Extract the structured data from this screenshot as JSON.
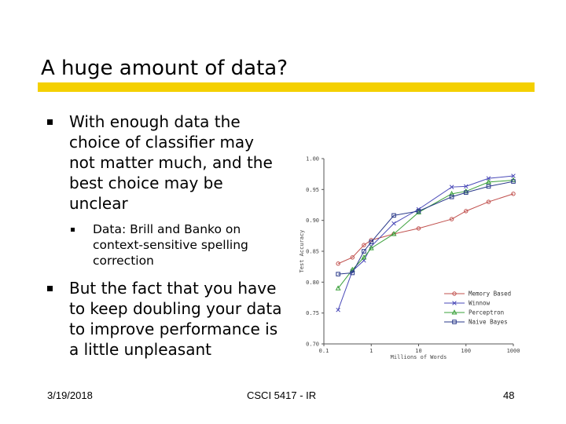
{
  "slide": {
    "title": "A huge amount of data?",
    "bullets": [
      "With enough data the choice of classifier may not matter much, and the best choice may be unclear",
      "Data: Brill and Banko on context-sensitive spelling correction",
      "But the fact that you have to keep doubling your data to improve performance is a little unpleasant"
    ],
    "footer": {
      "date": "3/19/2018",
      "course": "CSCI 5417 - IR",
      "page": "48"
    },
    "accent_color": "#f4d000"
  },
  "chart_data": {
    "type": "line",
    "ylabel": "Test Accuracy",
    "xlabel": "Millions of Words",
    "xscale": "log",
    "xlim": [
      0.1,
      1000
    ],
    "ylim": [
      0.7,
      1.0
    ],
    "xticks": [
      "0.1",
      "1",
      "10",
      "100",
      "1000"
    ],
    "yticks": [
      "0.70",
      "0.75",
      "0.80",
      "0.85",
      "0.90",
      "0.95",
      "1.00"
    ],
    "grid": false,
    "legend_position": "bottom-right",
    "x": [
      0.2,
      0.4,
      0.7,
      1,
      3,
      10,
      50,
      100,
      300,
      1000
    ],
    "series": [
      {
        "name": "Memory Based",
        "marker": "circle",
        "color": "#c0504d",
        "values": [
          0.83,
          0.84,
          0.86,
          0.868,
          0.878,
          0.887,
          0.902,
          0.915,
          0.93,
          0.943
        ]
      },
      {
        "name": "Winnow",
        "marker": "x",
        "color": "#4a4ab8",
        "values": [
          0.755,
          0.818,
          0.835,
          0.858,
          0.895,
          0.918,
          0.954,
          0.955,
          0.968,
          0.972
        ]
      },
      {
        "name": "Perceptron",
        "marker": "triangle",
        "color": "#3aa03a",
        "values": [
          0.79,
          0.82,
          0.84,
          0.855,
          0.878,
          0.913,
          0.943,
          0.947,
          0.962,
          0.965
        ]
      },
      {
        "name": "Naive Bayes",
        "marker": "square",
        "color": "#2a3a8a",
        "values": [
          0.813,
          0.815,
          0.85,
          0.865,
          0.908,
          0.915,
          0.938,
          0.945,
          0.955,
          0.963
        ]
      }
    ]
  }
}
